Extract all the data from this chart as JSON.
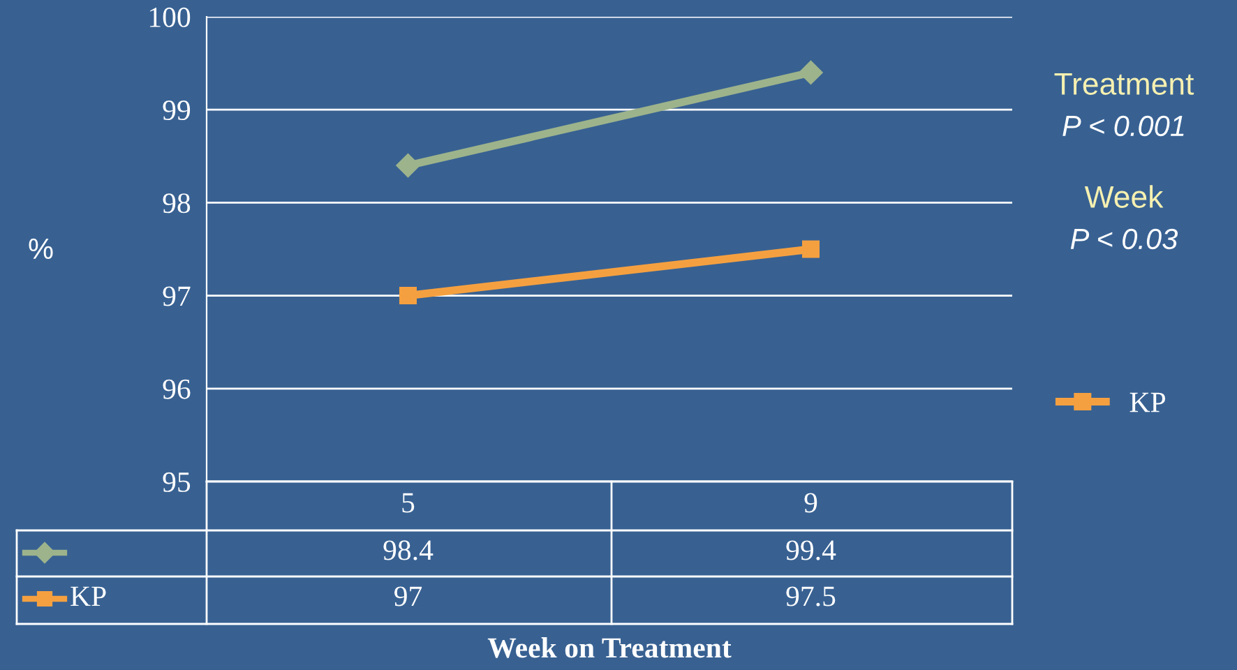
{
  "chart_data": {
    "type": "line",
    "categories": [
      "5",
      "9"
    ],
    "series": [
      {
        "color": "#9db38b",
        "values": [
          98.4,
          99.4
        ],
        "marker": "diamond"
      },
      {
        "name": "KP",
        "color": "#f5a040",
        "values": [
          97,
          97.5
        ],
        "marker": "square"
      }
    ],
    "ylim": [
      95,
      100
    ],
    "yticks": [
      95,
      96,
      97,
      98,
      99,
      100
    ],
    "ylabel": "%",
    "xlabel": "Week on Treatment",
    "grid": "y",
    "legend": "right",
    "data_labels": true,
    "annotations": [
      "Treatment",
      "P < 0.001",
      "Week",
      "P < 0.03"
    ]
  }
}
